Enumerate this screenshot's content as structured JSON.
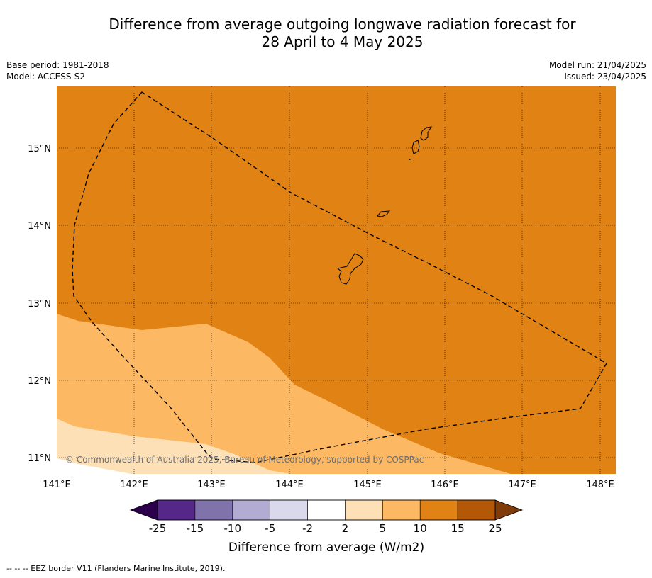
{
  "title": {
    "line1": "Difference from average outgoing longwave radiation forecast for",
    "line2": "28 April to 4 May 2025"
  },
  "meta": {
    "base_period": "Base period: 1981-2018",
    "model": "Model: ACCESS-S2",
    "model_run": "Model run: 21/04/2025",
    "issued": "Issued: 23/04/2025"
  },
  "map": {
    "lon_range": [
      141.0,
      148.2
    ],
    "lat_range": [
      10.8,
      15.8
    ],
    "lon_ticks": [
      "141°E",
      "142°E",
      "143°E",
      "144°E",
      "145°E",
      "146°E",
      "147°E",
      "148°E"
    ],
    "lat_ticks": [
      "15°N",
      "14°N",
      "13°N",
      "12°N",
      "11°N"
    ],
    "gridlines": true,
    "copyright": "© Commonwealth of Australia 2025, Bureau of Meteorology, supported by COSPPac",
    "background_color": "#e08214",
    "band_colors": {
      "10_to_5": "#fdb863",
      "5_to_2": "#fee0b6",
      "2_to_-2": "#ffffff"
    }
  },
  "colorbar": {
    "title": "Difference from average (W/m2)",
    "labels": [
      "-25",
      "-15",
      "-10",
      "-5",
      "-2",
      "2",
      "5",
      "10",
      "15",
      "25"
    ],
    "colors": [
      "#542788",
      "#8073ac",
      "#b2abd2",
      "#d8daeb",
      "#ffffff",
      "#fee0b6",
      "#fdb863",
      "#e08214",
      "#b35806"
    ],
    "under_color": "#2d004b",
    "over_color": "#7f3b08"
  },
  "footer": "--  --  -- EEZ border V11 (Flanders Marine Institute, 2019)."
}
